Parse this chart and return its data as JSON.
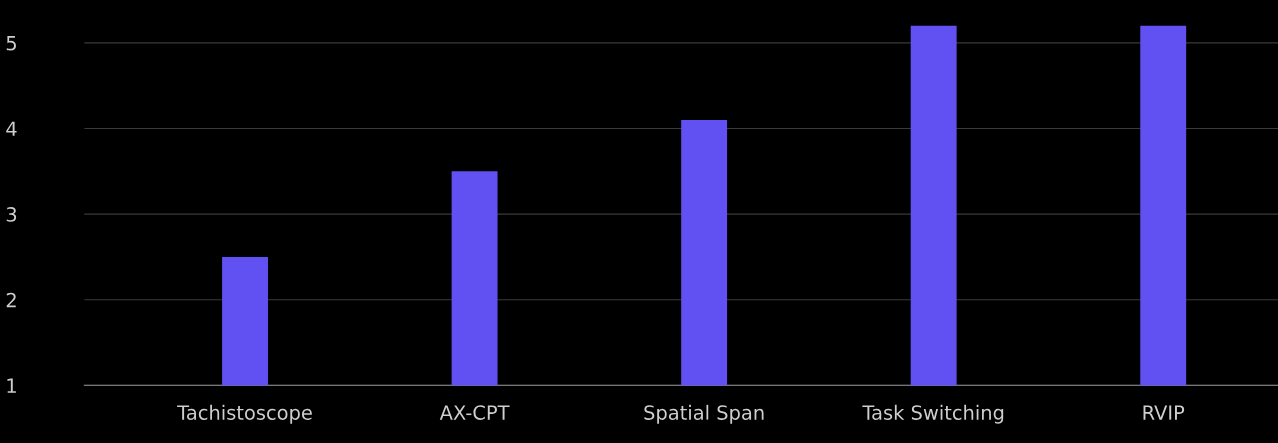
{
  "chart_data": {
    "type": "bar",
    "categories": [
      "Tachistoscope",
      "AX-CPT",
      "Spatial Span",
      "Task Switching",
      "RVIP"
    ],
    "values": [
      2.5,
      3.5,
      4.1,
      5.2,
      5.2
    ],
    "color": "#6150f2",
    "ylim": [
      1,
      5.5
    ],
    "yticks": [
      1,
      2,
      3,
      4,
      5
    ],
    "grid": "y",
    "legend": false
  }
}
